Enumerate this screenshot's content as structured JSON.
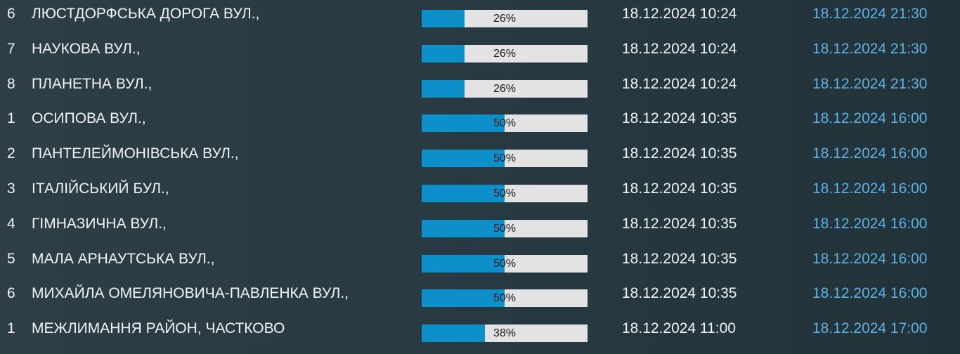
{
  "colors": {
    "background": "#2b3b44",
    "progress_fill": "#0d8fca",
    "progress_track": "#e3e3e3",
    "end_time_text": "#5fb2e4"
  },
  "outages": [
    {
      "num": "6",
      "street": "ЛЮСТДОРФСЬКА ДОРОГА ВУЛ.,",
      "progress": 26,
      "progress_label": "26%",
      "start": "18.12.2024 10:24",
      "end": "18.12.2024 21:30"
    },
    {
      "num": "7",
      "street": "НАУКОВА ВУЛ.,",
      "progress": 26,
      "progress_label": "26%",
      "start": "18.12.2024 10:24",
      "end": "18.12.2024 21:30"
    },
    {
      "num": "8",
      "street": "ПЛАНЕТНА ВУЛ.,",
      "progress": 26,
      "progress_label": "26%",
      "start": "18.12.2024 10:24",
      "end": "18.12.2024 21:30"
    },
    {
      "num": "1",
      "street": "ОСИПОВА ВУЛ.,",
      "progress": 50,
      "progress_label": "50%",
      "start": "18.12.2024 10:35",
      "end": "18.12.2024 16:00"
    },
    {
      "num": "2",
      "street": "ПАНТЕЛЕЙМОНІВСЬКА ВУЛ.,",
      "progress": 50,
      "progress_label": "50%",
      "start": "18.12.2024 10:35",
      "end": "18.12.2024 16:00"
    },
    {
      "num": "3",
      "street": "ІТАЛІЙСЬКИЙ БУЛ.,",
      "progress": 50,
      "progress_label": "50%",
      "start": "18.12.2024 10:35",
      "end": "18.12.2024 16:00"
    },
    {
      "num": "4",
      "street": "ГІМНАЗИЧНА ВУЛ.,",
      "progress": 50,
      "progress_label": "50%",
      "start": "18.12.2024 10:35",
      "end": "18.12.2024 16:00"
    },
    {
      "num": "5",
      "street": "МАЛА АРНАУТСЬКА ВУЛ.,",
      "progress": 50,
      "progress_label": "50%",
      "start": "18.12.2024 10:35",
      "end": "18.12.2024 16:00"
    },
    {
      "num": "6",
      "street": "МИХАЙЛА ОМЕЛЯНОВИЧА-ПАВЛЕНКА ВУЛ.,",
      "progress": 50,
      "progress_label": "50%",
      "start": "18.12.2024 10:35",
      "end": "18.12.2024 16:00"
    },
    {
      "num": "1",
      "street": "МЕЖЛИМАННЯ РАЙОН, ЧАСТКОВО",
      "progress": 38,
      "progress_label": "38%",
      "start": "18.12.2024 11:00",
      "end": "18.12.2024 17:00"
    }
  ]
}
